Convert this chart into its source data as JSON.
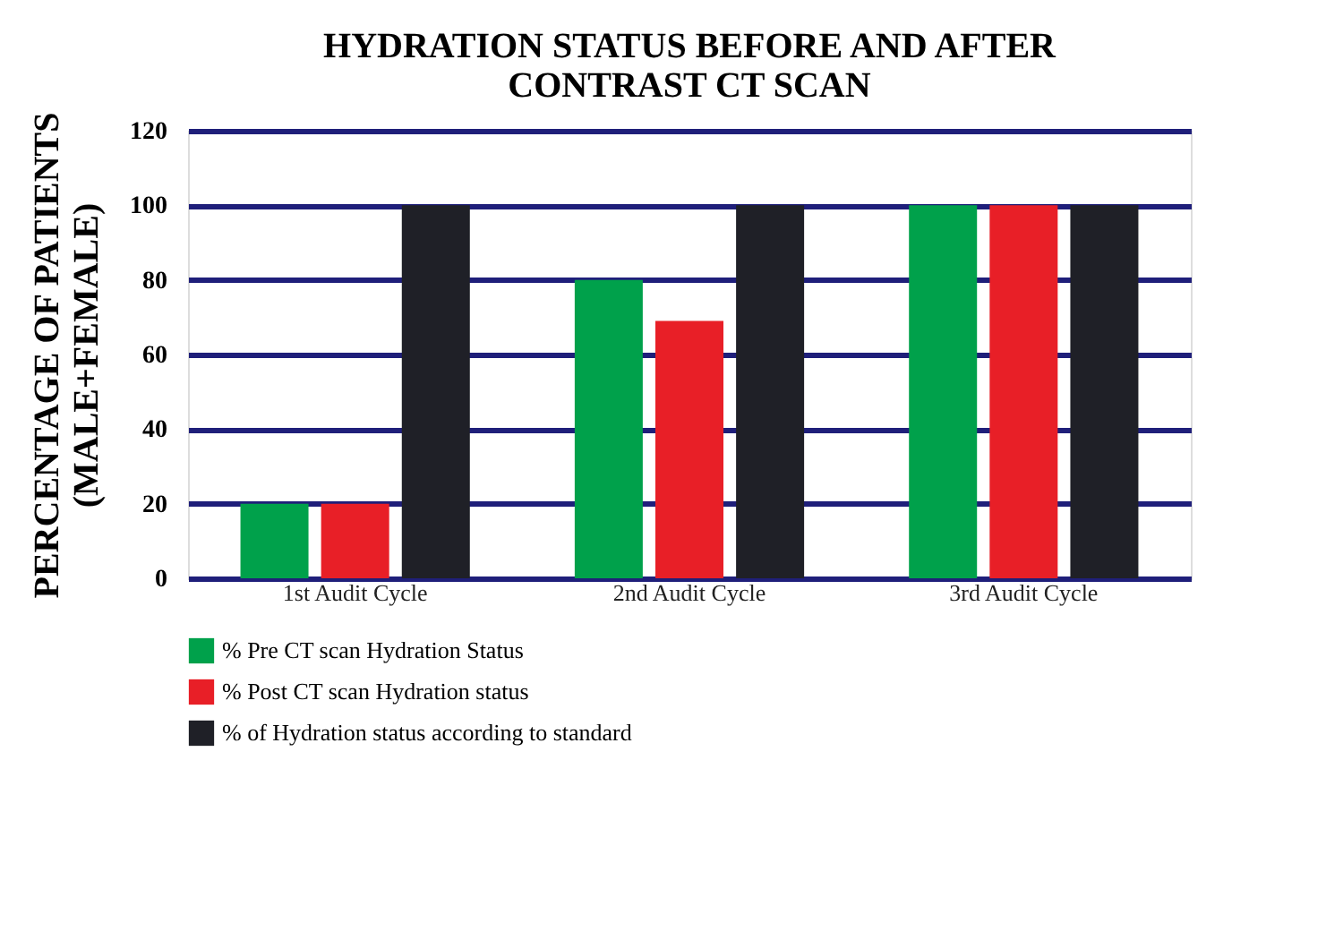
{
  "chart_data": {
    "type": "bar",
    "title": "HYDRATION STATUS BEFORE AND AFTER\nCONTRAST CT SCAN",
    "ylabel": "PERCENTAGE OF PATIENTS\n(MALE+FEMALE)",
    "categories": [
      "1st Audit Cycle",
      "2nd Audit Cycle",
      "3rd Audit Cycle"
    ],
    "series": [
      {
        "name": "% Pre CT scan Hydration Status",
        "color": "#00a14b",
        "values": [
          20,
          80,
          100
        ]
      },
      {
        "name": "% Post CT scan Hydration status",
        "color": "#e81f27",
        "values": [
          20,
          69,
          100
        ]
      },
      {
        "name": "% of Hydration status according to standard",
        "color": "#1f2027",
        "values": [
          100,
          100,
          100
        ]
      }
    ],
    "ylim": [
      0,
      120
    ],
    "yticks": [
      0,
      20,
      40,
      60,
      80,
      100,
      120
    ],
    "grid": "y",
    "legend": "bottom"
  }
}
